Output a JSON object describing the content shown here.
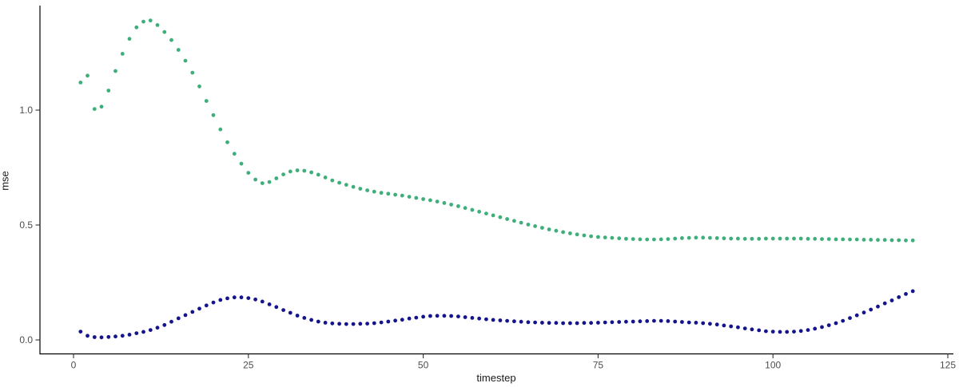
{
  "page": {
    "background": "#ffffff",
    "axis_color": "#000000",
    "tick_label_color": "#4d4d4d"
  },
  "chart_data": {
    "type": "scatter",
    "title": "",
    "xlabel": "timestep",
    "ylabel": "mse",
    "xlim": [
      -5,
      128
    ],
    "ylim": [
      0,
      1.45
    ],
    "grid": false,
    "legend_position": "none",
    "marker": "dot",
    "x_ticks": {
      "values": [
        0,
        25,
        50,
        75,
        100,
        125
      ],
      "labels": [
        "0",
        "25",
        "50",
        "75",
        "100",
        "125"
      ]
    },
    "y_ticks": {
      "values": [
        0,
        0.5,
        1.0
      ],
      "labels": [
        "0.0",
        "0.5",
        "1.0"
      ]
    },
    "x_start": 1,
    "x_step": 1,
    "series": [
      {
        "name": "green-series",
        "color": "#3eaf7a",
        "values": [
          1.12,
          1.15,
          1.005,
          1.015,
          1.085,
          1.17,
          1.245,
          1.31,
          1.36,
          1.385,
          1.39,
          1.37,
          1.34,
          1.305,
          1.262,
          1.215,
          1.163,
          1.103,
          1.04,
          0.978,
          0.916,
          0.86,
          0.81,
          0.767,
          0.727,
          0.698,
          0.682,
          0.687,
          0.703,
          0.72,
          0.733,
          0.738,
          0.736,
          0.729,
          0.719,
          0.707,
          0.694,
          0.684,
          0.675,
          0.666,
          0.658,
          0.651,
          0.645,
          0.64,
          0.636,
          0.632,
          0.628,
          0.623,
          0.618,
          0.613,
          0.608,
          0.602,
          0.596,
          0.589,
          0.582,
          0.574,
          0.566,
          0.558,
          0.55,
          0.542,
          0.534,
          0.526,
          0.518,
          0.51,
          0.502,
          0.495,
          0.488,
          0.481,
          0.475,
          0.469,
          0.464,
          0.459,
          0.455,
          0.451,
          0.448,
          0.446,
          0.444,
          0.442,
          0.44,
          0.439,
          0.438,
          0.437,
          0.437,
          0.438,
          0.439,
          0.441,
          0.443,
          0.444,
          0.445,
          0.445,
          0.444,
          0.443,
          0.442,
          0.441,
          0.441,
          0.44,
          0.44,
          0.44,
          0.441,
          0.441,
          0.441,
          0.441,
          0.441,
          0.441,
          0.44,
          0.44,
          0.439,
          0.439,
          0.438,
          0.438,
          0.437,
          0.437,
          0.436,
          0.436,
          0.435,
          0.435,
          0.434,
          0.434,
          0.433,
          0.433
        ]
      },
      {
        "name": "navy-series",
        "color": "#14148c",
        "values": [
          0.036,
          0.018,
          0.012,
          0.011,
          0.013,
          0.015,
          0.018,
          0.023,
          0.029,
          0.035,
          0.043,
          0.053,
          0.065,
          0.079,
          0.094,
          0.108,
          0.122,
          0.136,
          0.15,
          0.163,
          0.174,
          0.181,
          0.185,
          0.185,
          0.182,
          0.176,
          0.167,
          0.155,
          0.143,
          0.13,
          0.118,
          0.106,
          0.096,
          0.087,
          0.08,
          0.075,
          0.072,
          0.07,
          0.069,
          0.069,
          0.07,
          0.071,
          0.073,
          0.076,
          0.08,
          0.084,
          0.088,
          0.093,
          0.097,
          0.101,
          0.104,
          0.105,
          0.105,
          0.104,
          0.102,
          0.099,
          0.096,
          0.093,
          0.09,
          0.087,
          0.085,
          0.083,
          0.081,
          0.079,
          0.077,
          0.076,
          0.075,
          0.074,
          0.074,
          0.073,
          0.073,
          0.073,
          0.074,
          0.074,
          0.075,
          0.076,
          0.077,
          0.078,
          0.079,
          0.08,
          0.081,
          0.082,
          0.083,
          0.083,
          0.082,
          0.08,
          0.078,
          0.076,
          0.075,
          0.073,
          0.07,
          0.067,
          0.063,
          0.059,
          0.055,
          0.05,
          0.046,
          0.042,
          0.038,
          0.036,
          0.035,
          0.035,
          0.036,
          0.039,
          0.043,
          0.049,
          0.056,
          0.064,
          0.073,
          0.083,
          0.095,
          0.107,
          0.119,
          0.132,
          0.145,
          0.159,
          0.172,
          0.186,
          0.2,
          0.212
        ]
      }
    ]
  }
}
